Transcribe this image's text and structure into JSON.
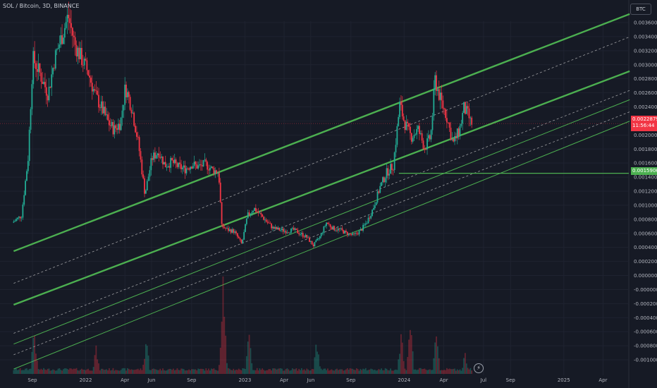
{
  "header": {
    "symbol_line": "SOL / Bitcoin, 3D, BINANCE"
  },
  "currency": "BTC",
  "colors": {
    "up": "#22ab94",
    "down": "#f23645",
    "channel": "#4caf50",
    "dashed": "#c9c9c9",
    "bg": "#161a25"
  },
  "current_price": {
    "value": "0.0022879",
    "countdown": "11:56:44"
  },
  "level_label": "0.0015906",
  "chart_data": {
    "type": "candlestick",
    "title": "",
    "ylim": [
      -0.00104,
      0.00372
    ],
    "y_ticks": [
      "0.0036000",
      "0.0034000",
      "0.0032000",
      "0.0030000",
      "0.0028000",
      "0.0026000",
      "0.0024000",
      "0.0022000",
      "0.0020000",
      "0.0018000",
      "0.0016000",
      "0.0014000",
      "0.0012000",
      "0.0010000",
      "0.0008000",
      "0.0006000",
      "0.0004000",
      "0.0002000",
      "0.0000000",
      "-0.0000000",
      "-0.0002000",
      "-0.0004000",
      "-0.0006000",
      "-0.0008000",
      "-0.0010000"
    ],
    "x_ticks": [
      "Sep",
      "2022",
      "Apr",
      "Jun",
      "Sep",
      "2023",
      "Apr",
      "Jun",
      "Sep",
      "2024",
      "Apr",
      "Jul",
      "Sep",
      "2025",
      "Apr"
    ],
    "price_path": [
      [
        "2021-07-20",
        0.0009
      ],
      [
        "2021-08-10",
        0.001
      ],
      [
        "2021-08-25",
        0.0018
      ],
      [
        "2021-09-05",
        0.0032
      ],
      [
        "2021-09-20",
        0.003
      ],
      [
        "2021-10-10",
        0.0027
      ],
      [
        "2021-10-25",
        0.0032
      ],
      [
        "2021-11-10",
        0.0035
      ],
      [
        "2021-11-25",
        0.0038
      ],
      [
        "2021-12-10",
        0.0034
      ],
      [
        "2021-12-25",
        0.0032
      ],
      [
        "2022-01-10",
        0.003
      ],
      [
        "2022-01-25",
        0.0027
      ],
      [
        "2022-02-10",
        0.0025
      ],
      [
        "2022-02-25",
        0.0023
      ],
      [
        "2022-03-10",
        0.0022
      ],
      [
        "2022-03-25",
        0.0023
      ],
      [
        "2022-04-05",
        0.0028
      ],
      [
        "2022-04-20",
        0.0025
      ],
      [
        "2022-05-05",
        0.002
      ],
      [
        "2022-05-20",
        0.0013
      ],
      [
        "2022-06-05",
        0.0018
      ],
      [
        "2022-06-20",
        0.0019
      ],
      [
        "2022-07-05",
        0.0017
      ],
      [
        "2022-07-20",
        0.00175
      ],
      [
        "2022-08-05",
        0.00168
      ],
      [
        "2022-08-20",
        0.00165
      ],
      [
        "2022-09-05",
        0.00172
      ],
      [
        "2022-09-20",
        0.00168
      ],
      [
        "2022-10-05",
        0.00172
      ],
      [
        "2022-10-20",
        0.00165
      ],
      [
        "2022-11-05",
        0.0016
      ],
      [
        "2022-11-12",
        0.00085
      ],
      [
        "2022-11-25",
        0.0008
      ],
      [
        "2022-12-10",
        0.00078
      ],
      [
        "2022-12-28",
        0.0006
      ],
      [
        "2023-01-10",
        0.001
      ],
      [
        "2023-01-25",
        0.0011
      ],
      [
        "2023-02-10",
        0.001
      ],
      [
        "2023-02-25",
        0.0009
      ],
      [
        "2023-03-10",
        0.00082
      ],
      [
        "2023-03-25",
        0.0008
      ],
      [
        "2023-04-10",
        0.00078
      ],
      [
        "2023-04-25",
        0.0008
      ],
      [
        "2023-05-10",
        0.00075
      ],
      [
        "2023-05-25",
        0.0007
      ],
      [
        "2023-06-10",
        0.00058
      ],
      [
        "2023-06-25",
        0.0007
      ],
      [
        "2023-07-10",
        0.0009
      ],
      [
        "2023-07-25",
        0.00082
      ],
      [
        "2023-08-10",
        0.0008
      ],
      [
        "2023-08-25",
        0.00075
      ],
      [
        "2023-09-10",
        0.00072
      ],
      [
        "2023-09-25",
        0.00078
      ],
      [
        "2023-10-10",
        0.0009
      ],
      [
        "2023-10-25",
        0.0011
      ],
      [
        "2023-11-10",
        0.0014
      ],
      [
        "2023-11-25",
        0.0016
      ],
      [
        "2023-12-10",
        0.0017
      ],
      [
        "2023-12-25",
        0.00255
      ],
      [
        "2024-01-05",
        0.0023
      ],
      [
        "2024-01-20",
        0.0021
      ],
      [
        "2024-02-05",
        0.0022
      ],
      [
        "2024-02-20",
        0.00195
      ],
      [
        "2024-03-05",
        0.0021
      ],
      [
        "2024-03-15",
        0.0029
      ],
      [
        "2024-03-28",
        0.0026
      ],
      [
        "2024-04-10",
        0.0024
      ],
      [
        "2024-04-25",
        0.002
      ],
      [
        "2024-05-10",
        0.0022
      ],
      [
        "2024-05-20",
        0.0025
      ],
      [
        "2024-05-30",
        0.0024
      ],
      [
        "2024-06-05",
        0.00229
      ]
    ],
    "volume_peaks": [
      [
        "2021-09-05",
        0.45
      ],
      [
        "2022-01-25",
        0.25
      ],
      [
        "2022-05-20",
        0.35
      ],
      [
        "2022-11-12",
        1.0
      ],
      [
        "2023-01-10",
        0.45
      ],
      [
        "2023-06-15",
        0.3
      ],
      [
        "2023-12-25",
        0.4
      ],
      [
        "2024-01-15",
        0.55
      ],
      [
        "2024-03-15",
        0.45
      ],
      [
        "2024-05-20",
        0.2
      ]
    ],
    "channel_lines": [
      {
        "style": "solid-thick",
        "points": [
          [
            "2021-07-20",
            0.0005
          ],
          [
            "2025-06-01",
            0.00382
          ]
        ]
      },
      {
        "style": "solid-thick",
        "points": [
          [
            "2021-07-20",
            -0.00025
          ],
          [
            "2025-06-01",
            0.00302
          ]
        ]
      },
      {
        "style": "dashed",
        "points": [
          [
            "2021-07-20",
            5e-05
          ],
          [
            "2025-06-01",
            0.0035
          ]
        ]
      },
      {
        "style": "dashed",
        "points": [
          [
            "2021-07-20",
            -0.00065
          ],
          [
            "2025-06-01",
            0.00275
          ]
        ]
      },
      {
        "style": "dashed",
        "points": [
          [
            "2021-07-20",
            -0.00095
          ],
          [
            "2025-06-01",
            0.00245
          ]
        ]
      },
      {
        "style": "solid-thin",
        "points": [
          [
            "2021-07-20",
            -0.0008
          ],
          [
            "2025-06-01",
            0.00262
          ]
        ]
      },
      {
        "style": "solid-thin",
        "points": [
          [
            "2021-07-20",
            -0.00115
          ],
          [
            "2025-06-01",
            0.00232
          ]
        ]
      }
    ],
    "horizontal_levels": [
      {
        "from": "2023-12-20",
        "value": 0.0015906
      }
    ]
  }
}
